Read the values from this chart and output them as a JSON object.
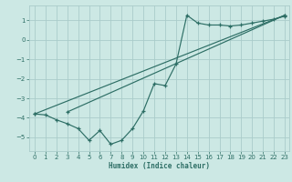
{
  "xlabel": "Humidex (Indice chaleur)",
  "bg_color": "#cce8e4",
  "grid_color": "#aaccca",
  "line_color": "#2d6e65",
  "xlim_min": -0.5,
  "xlim_max": 23.4,
  "ylim_min": -5.7,
  "ylim_max": 1.75,
  "yticks": [
    1,
    0,
    -1,
    -2,
    -3,
    -4,
    -5
  ],
  "xticks": [
    0,
    1,
    2,
    3,
    4,
    5,
    6,
    7,
    8,
    9,
    10,
    11,
    12,
    13,
    14,
    15,
    16,
    17,
    18,
    19,
    20,
    21,
    22,
    23
  ],
  "line1_x": [
    0,
    1,
    2,
    3,
    4,
    5,
    6,
    7,
    8,
    9,
    10,
    11,
    12,
    13,
    14,
    15,
    16,
    17,
    18,
    19,
    20,
    21,
    22,
    23
  ],
  "line1_y": [
    -3.8,
    -3.85,
    -4.1,
    -4.3,
    -4.55,
    -5.15,
    -4.65,
    -5.35,
    -5.15,
    -4.55,
    -3.65,
    -2.25,
    -2.35,
    -1.25,
    1.25,
    0.85,
    0.75,
    0.75,
    0.7,
    0.75,
    0.85,
    0.95,
    1.05,
    1.2
  ],
  "line2_x": [
    0,
    23
  ],
  "line2_y": [
    -3.8,
    1.25
  ],
  "line3_x": [
    3,
    23
  ],
  "line3_y": [
    -3.7,
    1.25
  ]
}
